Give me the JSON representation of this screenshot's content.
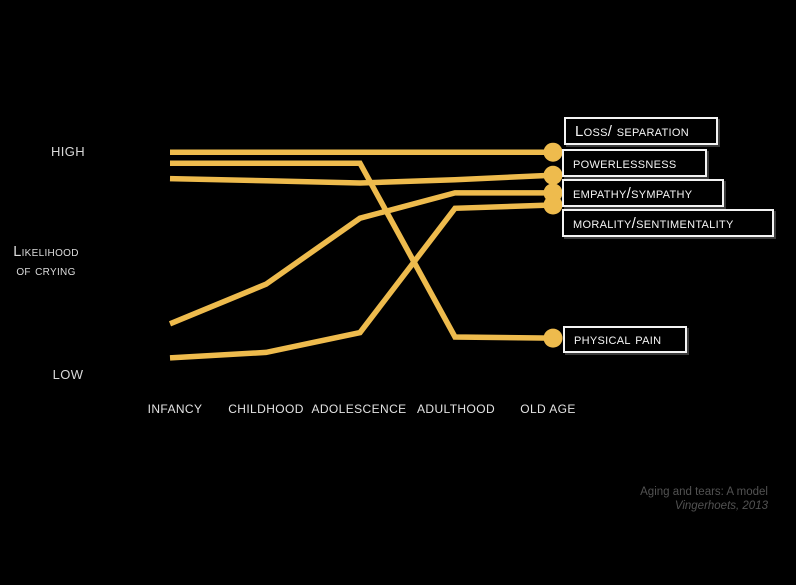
{
  "axis": {
    "high": "HIGH",
    "low": "LOW",
    "ylabel_line1": "Likelihood",
    "ylabel_line2": "of crying"
  },
  "citation": {
    "line1": "Aging and tears: A model",
    "line2": "Vingerhoets, 2013"
  },
  "colors": {
    "background": "#000000",
    "line_gold": "#eebb4d",
    "box_border": "#f3f3f3",
    "box_text": "#f5f5f5",
    "axis_text": "#d9d9d9",
    "citation_text": "#525252"
  },
  "chart_data": {
    "type": "line",
    "title": "Aging and tears: A model",
    "subtitle": "Vingerhoets, 2013",
    "xlabel": "",
    "ylabel": "Likelihood of crying",
    "categories": [
      "INFANCY",
      "CHILDHOOD",
      "ADOLESCENCE",
      "ADULTHOOD",
      "OLD AGE"
    ],
    "y_axis": {
      "type": "qualitative",
      "low_label": "LOW",
      "high_label": "HIGH",
      "scale": [
        0,
        100
      ]
    },
    "grid": false,
    "legend_position": "right-endpoint-boxes",
    "series": [
      {
        "name": "Loss/separation",
        "label": "Loss/ separation",
        "values": [
          99,
          99,
          99,
          99,
          99
        ]
      },
      {
        "name": "Powerlessness",
        "label": "powerlessness",
        "values": [
          87,
          86,
          85,
          86.5,
          88.5
        ]
      },
      {
        "name": "Empathy/sympathy",
        "label": "empathy/sympathy",
        "values": [
          21,
          39,
          69,
          80.5,
          80.5
        ]
      },
      {
        "name": "Morality/sentimentality",
        "label": "morality/sentimentality",
        "values": [
          5.5,
          8,
          17,
          73.5,
          75
        ]
      },
      {
        "name": "Physical pain",
        "label": "physical pain",
        "values": [
          94,
          94,
          94,
          15,
          14.5
        ]
      }
    ]
  }
}
